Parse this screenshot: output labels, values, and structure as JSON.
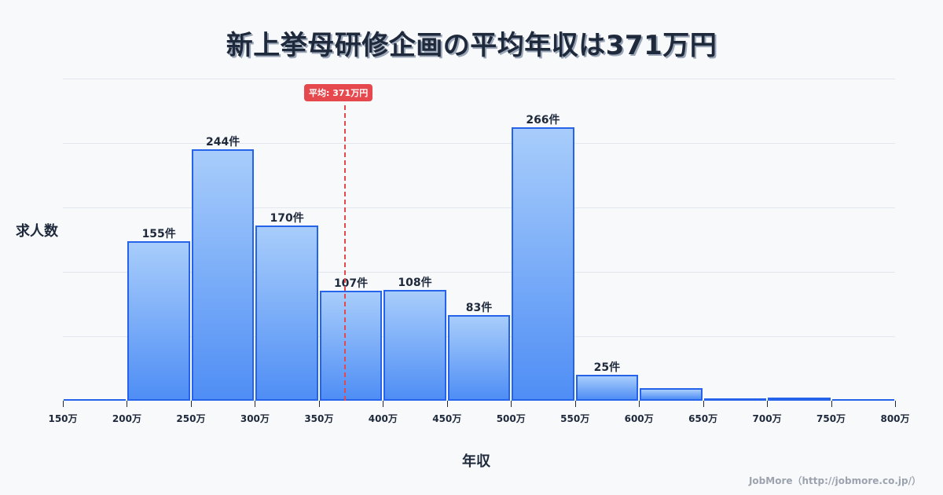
{
  "title": "新上挙母研修企画の平均年収は371万円",
  "ylabel": "求人数",
  "xlabel": "年収",
  "average_badge": "平均: 371万円",
  "credit": "JobMore（http://jobmore.co.jp/）",
  "colors": {
    "bar_border": "#2563eb",
    "bar_top": "#a8cdfb",
    "bar_bottom": "#4f8ef5",
    "average_line": "#e5484d",
    "text": "#1e293b"
  },
  "chart_data": {
    "type": "bar",
    "title": "新上挙母研修企画の平均年収は371万円",
    "xlabel": "年収",
    "ylabel": "求人数",
    "categories": [
      "150-200万",
      "200-250万",
      "250-300万",
      "300-350万",
      "350-400万",
      "400-450万",
      "450-500万",
      "500-550万",
      "550-600万",
      "600-650万",
      "650-700万",
      "700-750万",
      "750-800万"
    ],
    "values": [
      1,
      155,
      244,
      170,
      107,
      108,
      83,
      266,
      25,
      12,
      2,
      3,
      1
    ],
    "labels": [
      "",
      "155件",
      "244件",
      "170件",
      "107件",
      "108件",
      "83件",
      "266件",
      "25件",
      "",
      "",
      "",
      ""
    ],
    "x_ticks": [
      "150万",
      "200万",
      "250万",
      "300万",
      "350万",
      "400万",
      "450万",
      "500万",
      "550万",
      "600万",
      "650万",
      "700万",
      "750万",
      "800万"
    ],
    "average": 371,
    "average_label": "平均: 371万円",
    "ylim": [
      0,
      313
    ],
    "grid": true
  }
}
